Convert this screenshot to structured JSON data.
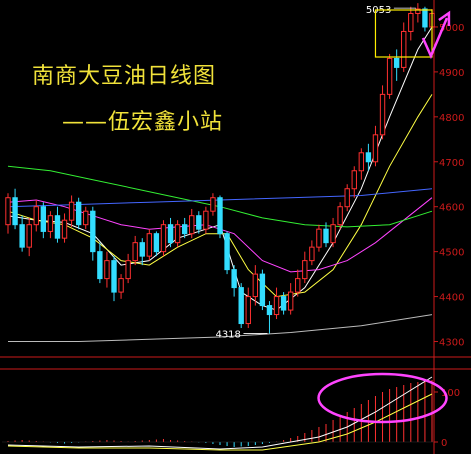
{
  "header": {
    "title": "南商大豆油日线图",
    "subtitle": "——伍宏鑫小站"
  },
  "colors": {
    "background": "#000000",
    "axis": "#cc1a1a",
    "up_candle": "#ff3030",
    "down_candle": "#33ddff",
    "ma_white": "#ffffff",
    "ma_yellow": "#ffff44",
    "ma_magenta": "#ff44ff",
    "ma_green": "#33ee33",
    "ma_blue": "#4466ff",
    "ma_gray": "#bbbbbb",
    "annotation_box": "#ffee00",
    "arrow": "#ff44ff"
  },
  "chart_data": [
    {
      "type": "candlestick",
      "name": "main",
      "ylim": [
        4270,
        5060
      ],
      "y_ticks": [
        4300,
        4400,
        4500,
        4600,
        4700,
        4800,
        4900,
        5000
      ],
      "annotations": [
        {
          "text": "5053",
          "value": 5053
        },
        {
          "text": "4318",
          "value": 4318
        }
      ],
      "candles": [
        [
          4560,
          4620,
          4540,
          4630
        ],
        [
          4620,
          4560,
          4550,
          4640
        ],
        [
          4560,
          4510,
          4500,
          4580
        ],
        [
          4510,
          4560,
          4490,
          4575
        ],
        [
          4560,
          4600,
          4545,
          4615
        ],
        [
          4600,
          4545,
          4530,
          4610
        ],
        [
          4545,
          4580,
          4530,
          4590
        ],
        [
          4580,
          4530,
          4520,
          4600
        ],
        [
          4530,
          4570,
          4520,
          4585
        ],
        [
          4570,
          4610,
          4555,
          4625
        ],
        [
          4610,
          4560,
          4550,
          4620
        ],
        [
          4560,
          4590,
          4550,
          4600
        ],
        [
          4590,
          4500,
          4480,
          4600
        ],
        [
          4500,
          4440,
          4430,
          4520
        ],
        [
          4440,
          4480,
          4420,
          4500
        ],
        [
          4480,
          4410,
          4390,
          4490
        ],
        [
          4410,
          4440,
          4395,
          4450
        ],
        [
          4440,
          4480,
          4430,
          4495
        ],
        [
          4480,
          4520,
          4470,
          4535
        ],
        [
          4520,
          4490,
          4470,
          4530
        ],
        [
          4490,
          4540,
          4480,
          4550
        ],
        [
          4540,
          4500,
          4490,
          4545
        ],
        [
          4500,
          4560,
          4490,
          4570
        ],
        [
          4560,
          4520,
          4510,
          4575
        ],
        [
          4520,
          4560,
          4510,
          4570
        ],
        [
          4560,
          4540,
          4530,
          4575
        ],
        [
          4540,
          4580,
          4530,
          4595
        ],
        [
          4580,
          4550,
          4540,
          4590
        ],
        [
          4550,
          4590,
          4540,
          4600
        ],
        [
          4590,
          4620,
          4580,
          4630
        ],
        [
          4620,
          4540,
          4530,
          4625
        ],
        [
          4540,
          4460,
          4450,
          4545
        ],
        [
          4460,
          4420,
          4400,
          4470
        ],
        [
          4420,
          4340,
          4330,
          4430
        ],
        [
          4340,
          4400,
          4330,
          4420
        ],
        [
          4400,
          4450,
          4380,
          4470
        ],
        [
          4450,
          4380,
          4370,
          4460
        ],
        [
          4380,
          4360,
          4318,
          4390
        ],
        [
          4360,
          4400,
          4350,
          4420
        ],
        [
          4400,
          4370,
          4360,
          4410
        ],
        [
          4370,
          4410,
          4360,
          4430
        ],
        [
          4410,
          4440,
          4400,
          4460
        ],
        [
          4440,
          4480,
          4430,
          4500
        ],
        [
          4480,
          4510,
          4470,
          4525
        ],
        [
          4510,
          4550,
          4500,
          4560
        ],
        [
          4550,
          4520,
          4510,
          4565
        ],
        [
          4520,
          4560,
          4510,
          4575
        ],
        [
          4560,
          4600,
          4550,
          4610
        ],
        [
          4600,
          4640,
          4590,
          4650
        ],
        [
          4640,
          4680,
          4620,
          4690
        ],
        [
          4680,
          4720,
          4660,
          4730
        ],
        [
          4720,
          4700,
          4680,
          4740
        ],
        [
          4700,
          4760,
          4690,
          4780
        ],
        [
          4760,
          4850,
          4750,
          4870
        ],
        [
          4850,
          4930,
          4840,
          4940
        ],
        [
          4930,
          4910,
          4880,
          4950
        ],
        [
          4910,
          4990,
          4900,
          5010
        ],
        [
          4990,
          5030,
          4970,
          5045
        ],
        [
          5030,
          5040,
          5010,
          5053
        ],
        [
          5040,
          5000,
          4990,
          5045
        ],
        [
          5000,
          5030,
          4980,
          5040
        ]
      ],
      "series": [
        {
          "color_key": "ma_white",
          "points": [
            [
              0,
              4580
            ],
            [
              4,
              4570
            ],
            [
              8,
              4565
            ],
            [
              12,
              4540
            ],
            [
              16,
              4470
            ],
            [
              20,
              4480
            ],
            [
              24,
              4530
            ],
            [
              28,
              4550
            ],
            [
              30,
              4560
            ],
            [
              33,
              4410
            ],
            [
              36,
              4380
            ],
            [
              38,
              4370
            ],
            [
              42,
              4420
            ],
            [
              46,
              4520
            ],
            [
              50,
              4640
            ],
            [
              54,
              4800
            ],
            [
              58,
              4950
            ],
            [
              60,
              5000
            ]
          ]
        },
        {
          "color_key": "ma_yellow",
          "points": [
            [
              0,
              4590
            ],
            [
              4,
              4570
            ],
            [
              8,
              4560
            ],
            [
              12,
              4530
            ],
            [
              16,
              4480
            ],
            [
              20,
              4470
            ],
            [
              24,
              4510
            ],
            [
              28,
              4540
            ],
            [
              31,
              4540
            ],
            [
              34,
              4460
            ],
            [
              38,
              4400
            ],
            [
              42,
              4410
            ],
            [
              46,
              4460
            ],
            [
              50,
              4560
            ],
            [
              54,
              4690
            ],
            [
              58,
              4800
            ],
            [
              60,
              4850
            ]
          ]
        },
        {
          "color_key": "ma_magenta",
          "points": [
            [
              0,
              4610
            ],
            [
              4,
              4615
            ],
            [
              8,
              4600
            ],
            [
              12,
              4580
            ],
            [
              16,
              4560
            ],
            [
              20,
              4550
            ],
            [
              24,
              4555
            ],
            [
              28,
              4560
            ],
            [
              32,
              4540
            ],
            [
              36,
              4480
            ],
            [
              40,
              4455
            ],
            [
              44,
              4460
            ],
            [
              48,
              4480
            ],
            [
              52,
              4520
            ],
            [
              56,
              4570
            ],
            [
              60,
              4620
            ]
          ]
        },
        {
          "color_key": "ma_green",
          "points": [
            [
              0,
              4690
            ],
            [
              6,
              4680
            ],
            [
              12,
              4660
            ],
            [
              18,
              4640
            ],
            [
              24,
              4620
            ],
            [
              30,
              4600
            ],
            [
              36,
              4575
            ],
            [
              42,
              4560
            ],
            [
              48,
              4555
            ],
            [
              54,
              4560
            ],
            [
              60,
              4590
            ]
          ]
        },
        {
          "color_key": "ma_blue",
          "points": [
            [
              0,
              4600
            ],
            [
              10,
              4605
            ],
            [
              20,
              4610
            ],
            [
              30,
              4615
            ],
            [
              40,
              4620
            ],
            [
              50,
              4625
            ],
            [
              60,
              4640
            ]
          ]
        },
        {
          "color_key": "ma_gray",
          "points": [
            [
              0,
              4300
            ],
            [
              10,
              4300
            ],
            [
              20,
              4305
            ],
            [
              30,
              4310
            ],
            [
              40,
              4320
            ],
            [
              50,
              4335
            ],
            [
              60,
              4360
            ]
          ]
        }
      ]
    },
    {
      "type": "bar",
      "name": "oscillator",
      "ylim": [
        -20,
        140
      ],
      "y_ticks": [
        0,
        100
      ],
      "values": [
        2,
        3,
        4,
        3,
        2,
        1,
        -1,
        -2,
        -3,
        -2,
        -1,
        1,
        2,
        3,
        4,
        3,
        2,
        1,
        2,
        3,
        4,
        5,
        6,
        4,
        3,
        2,
        1,
        -1,
        -2,
        -4,
        -6,
        -8,
        -10,
        -9,
        -8,
        -6,
        -4,
        -2,
        1,
        4,
        8,
        12,
        18,
        24,
        30,
        36,
        44,
        52,
        60,
        68,
        76,
        84,
        92,
        100,
        106,
        110,
        114,
        118,
        120,
        122,
        124
      ],
      "series": [
        {
          "color_key": "ma_white",
          "points": [
            [
              0,
              -6
            ],
            [
              10,
              -10
            ],
            [
              20,
              -8
            ],
            [
              30,
              -14
            ],
            [
              36,
              -10
            ],
            [
              40,
              0
            ],
            [
              44,
              10
            ],
            [
              48,
              30
            ],
            [
              52,
              60
            ],
            [
              56,
              95
            ],
            [
              60,
              130
            ]
          ]
        },
        {
          "color_key": "ma_yellow",
          "points": [
            [
              0,
              -8
            ],
            [
              10,
              -12
            ],
            [
              20,
              -12
            ],
            [
              30,
              -16
            ],
            [
              36,
              -16
            ],
            [
              40,
              -8
            ],
            [
              44,
              0
            ],
            [
              48,
              16
            ],
            [
              52,
              40
            ],
            [
              56,
              68
            ],
            [
              60,
              96
            ]
          ]
        }
      ]
    }
  ]
}
